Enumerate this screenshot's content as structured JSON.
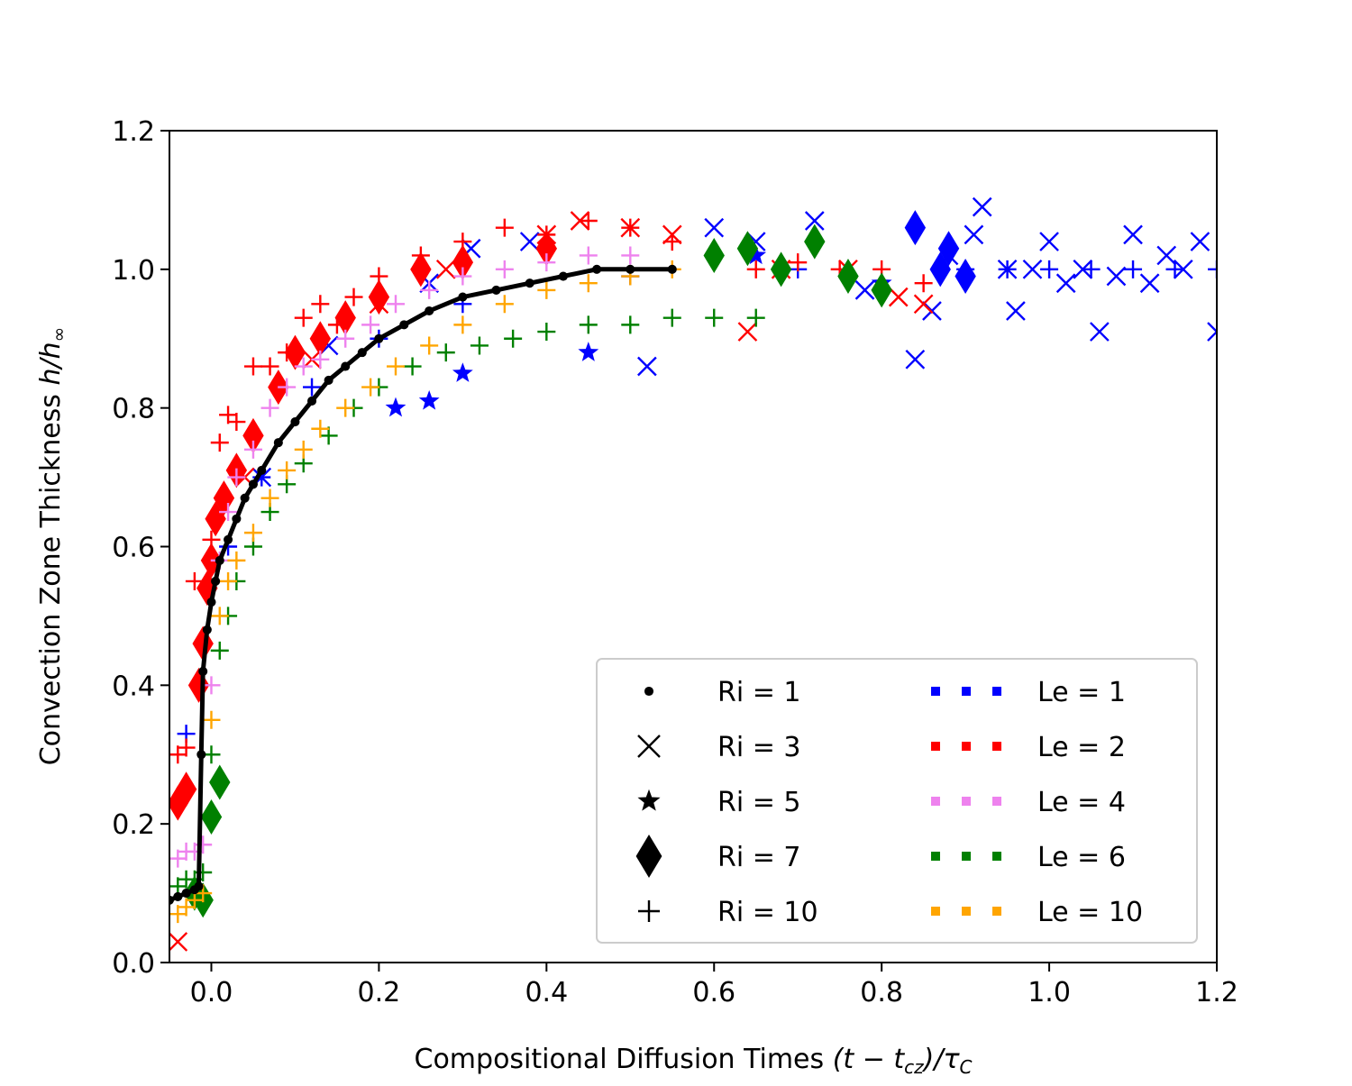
{
  "chart_data": {
    "type": "scatter",
    "title": "",
    "xlabel": "Compositional Diffusion Times  (t − t_cz)/τ_C",
    "xlabel_parts": {
      "prefix": "Compositional Diffusion Times  ",
      "expr": "(t − t",
      "sub": "cz",
      "close": ")/τ",
      "sub2": "C"
    },
    "ylabel": "Convection Zone Thickness  h/h∞",
    "ylabel_parts": {
      "prefix": "Convection Zone Thickness  ",
      "expr": "h/h",
      "sub": "∞"
    },
    "xlim": [
      -0.05,
      1.2
    ],
    "ylim": [
      0.0,
      1.2
    ],
    "xticks": [
      0.0,
      0.2,
      0.4,
      0.6,
      0.8,
      1.0,
      1.2
    ],
    "xtick_labels": [
      "0.0",
      "0.2",
      "0.4",
      "0.6",
      "0.8",
      "1.0",
      "1.2"
    ],
    "yticks": [
      0.0,
      0.2,
      0.4,
      0.6,
      0.8,
      1.0,
      1.2
    ],
    "ytick_labels": [
      "0.0",
      "0.2",
      "0.4",
      "0.6",
      "0.8",
      "1.0",
      "1.2"
    ],
    "grid": false,
    "legend_position": "lower right",
    "legend": {
      "markers": [
        {
          "label": "Ri = 1",
          "marker": "circle"
        },
        {
          "label": "Ri = 3",
          "marker": "x"
        },
        {
          "label": "Ri = 5",
          "marker": "star"
        },
        {
          "label": "Ri = 7",
          "marker": "diamond"
        },
        {
          "label": "Ri = 10",
          "marker": "plus"
        }
      ],
      "colors": [
        {
          "label": "Le = 1",
          "color": "#0000ff"
        },
        {
          "label": "Le = 2",
          "color": "#ff0000"
        },
        {
          "label": "Le = 4",
          "color": "#ee82ee"
        },
        {
          "label": "Le = 6",
          "color": "#008000"
        },
        {
          "label": "Le = 10",
          "color": "#ffa500"
        }
      ]
    },
    "series": [
      {
        "le": 1,
        "ri": 3,
        "color": "#0000ff",
        "marker": "x",
        "x": [
          0.06,
          0.14,
          0.26,
          0.31,
          0.38,
          0.52,
          0.6,
          0.65,
          0.72,
          0.78,
          0.84,
          0.86,
          0.88,
          0.91,
          0.92,
          0.95,
          0.96,
          0.98,
          1.0,
          1.02,
          1.04,
          1.06,
          1.08,
          1.1,
          1.12,
          1.14,
          1.16,
          1.18,
          1.2
        ],
        "y": [
          0.7,
          0.89,
          0.98,
          1.03,
          1.04,
          0.86,
          1.06,
          1.04,
          1.07,
          0.97,
          0.87,
          0.94,
          1.02,
          1.05,
          1.09,
          1.0,
          0.94,
          1.0,
          1.04,
          0.98,
          1.0,
          0.91,
          0.99,
          1.05,
          0.98,
          1.02,
          1.0,
          1.04,
          0.91
        ]
      },
      {
        "le": 1,
        "ri": 5,
        "color": "#0000ff",
        "marker": "star",
        "x": [
          0.22,
          0.26,
          0.3,
          0.45,
          0.65,
          0.8
        ],
        "y": [
          0.8,
          0.81,
          0.85,
          0.88,
          1.02,
          0.98
        ]
      },
      {
        "le": 1,
        "ri": 7,
        "color": "#0000ff",
        "marker": "diamond",
        "x": [
          0.84,
          0.87,
          0.88,
          0.9
        ],
        "y": [
          1.06,
          1.0,
          1.03,
          0.99
        ]
      },
      {
        "le": 1,
        "ri": 10,
        "color": "#0000ff",
        "marker": "plus",
        "x": [
          -0.03,
          0.02,
          0.06,
          0.12,
          0.2,
          0.3,
          0.5,
          0.7,
          0.9,
          0.95,
          1.0,
          1.05,
          1.1,
          1.15,
          1.2
        ],
        "y": [
          0.33,
          0.6,
          0.7,
          0.83,
          0.9,
          0.95,
          0.99,
          1.0,
          1.0,
          1.0,
          1.0,
          1.0,
          1.0,
          1.0,
          1.0
        ]
      },
      {
        "le": 2,
        "ri": 3,
        "color": "#ff0000",
        "marker": "x",
        "x": [
          -0.04,
          0.04,
          0.12,
          0.2,
          0.28,
          0.4,
          0.44,
          0.5,
          0.55,
          0.64,
          0.68,
          0.76,
          0.82,
          0.85
        ],
        "y": [
          0.03,
          0.7,
          0.87,
          0.95,
          1.0,
          1.05,
          1.07,
          1.06,
          1.05,
          0.91,
          1.0,
          1.0,
          0.96,
          0.95
        ]
      },
      {
        "le": 2,
        "ri": 7,
        "color": "#ff0000",
        "marker": "diamond",
        "x": [
          -0.04,
          -0.03,
          -0.015,
          -0.01,
          -0.005,
          0.0,
          0.005,
          0.015,
          0.03,
          0.05,
          0.08,
          0.1,
          0.13,
          0.16,
          0.2,
          0.25,
          0.3,
          0.4
        ],
        "y": [
          0.23,
          0.25,
          0.4,
          0.46,
          0.54,
          0.58,
          0.64,
          0.67,
          0.71,
          0.76,
          0.83,
          0.88,
          0.9,
          0.93,
          0.96,
          1.0,
          1.01,
          1.03
        ]
      },
      {
        "le": 2,
        "ri": 10,
        "color": "#ff0000",
        "marker": "plus",
        "x": [
          -0.04,
          -0.03,
          -0.02,
          0.0,
          0.01,
          0.02,
          0.03,
          0.05,
          0.07,
          0.09,
          0.11,
          0.13,
          0.15,
          0.17,
          0.2,
          0.25,
          0.3,
          0.35,
          0.4,
          0.45,
          0.5,
          0.55,
          0.6,
          0.65,
          0.7,
          0.75,
          0.8,
          0.85
        ],
        "y": [
          0.3,
          0.31,
          0.55,
          0.61,
          0.75,
          0.79,
          0.78,
          0.86,
          0.86,
          0.88,
          0.93,
          0.95,
          0.92,
          0.96,
          0.99,
          1.02,
          1.04,
          1.06,
          1.05,
          1.07,
          1.06,
          1.04,
          1.02,
          1.0,
          1.01,
          1.0,
          1.0,
          0.98
        ]
      },
      {
        "le": 4,
        "ri": 10,
        "color": "#ee82ee",
        "marker": "plus",
        "x": [
          -0.04,
          -0.03,
          -0.02,
          -0.01,
          0.0,
          0.01,
          0.02,
          0.03,
          0.05,
          0.07,
          0.09,
          0.11,
          0.13,
          0.16,
          0.19,
          0.22,
          0.26,
          0.3,
          0.35,
          0.4,
          0.45,
          0.5
        ],
        "y": [
          0.15,
          0.16,
          0.16,
          0.17,
          0.4,
          0.58,
          0.65,
          0.7,
          0.74,
          0.8,
          0.83,
          0.86,
          0.87,
          0.9,
          0.92,
          0.95,
          0.97,
          0.99,
          1.0,
          1.01,
          1.02,
          1.02
        ]
      },
      {
        "le": 6,
        "ri": 10,
        "color": "#008000",
        "marker": "plus",
        "x": [
          -0.04,
          -0.03,
          -0.02,
          -0.01,
          0.0,
          0.01,
          0.02,
          0.03,
          0.05,
          0.07,
          0.09,
          0.11,
          0.14,
          0.17,
          0.2,
          0.24,
          0.28,
          0.32,
          0.36,
          0.4,
          0.45,
          0.5,
          0.55,
          0.6,
          0.65
        ],
        "y": [
          0.11,
          0.12,
          0.12,
          0.13,
          0.3,
          0.45,
          0.5,
          0.55,
          0.6,
          0.65,
          0.69,
          0.72,
          0.76,
          0.8,
          0.83,
          0.86,
          0.88,
          0.89,
          0.9,
          0.91,
          0.92,
          0.92,
          0.93,
          0.93,
          0.93
        ]
      },
      {
        "le": 6,
        "ri": 7,
        "color": "#008000",
        "marker": "diamond",
        "x": [
          -0.02,
          -0.01,
          0.0,
          0.01,
          0.6,
          0.64,
          0.68,
          0.72,
          0.76,
          0.8
        ],
        "y": [
          0.1,
          0.09,
          0.21,
          0.26,
          1.02,
          1.03,
          1.0,
          1.04,
          0.99,
          0.97
        ]
      },
      {
        "le": 10,
        "ri": 10,
        "color": "#ffa500",
        "marker": "plus",
        "x": [
          -0.04,
          -0.03,
          -0.02,
          -0.01,
          0.0,
          0.01,
          0.02,
          0.03,
          0.05,
          0.07,
          0.09,
          0.11,
          0.13,
          0.16,
          0.19,
          0.22,
          0.26,
          0.3,
          0.35,
          0.4,
          0.45,
          0.5,
          0.55
        ],
        "y": [
          0.07,
          0.08,
          0.09,
          0.1,
          0.35,
          0.5,
          0.55,
          0.58,
          0.62,
          0.67,
          0.71,
          0.74,
          0.77,
          0.8,
          0.83,
          0.86,
          0.89,
          0.92,
          0.95,
          0.97,
          0.98,
          0.99,
          1.0
        ]
      },
      {
        "le": 1,
        "ri": 1,
        "color": "#000000",
        "marker": "circle",
        "line": true,
        "x": [
          -0.05,
          -0.04,
          -0.03,
          -0.02,
          -0.015,
          -0.012,
          -0.01,
          -0.005,
          0.0,
          0.005,
          0.01,
          0.02,
          0.03,
          0.04,
          0.05,
          0.06,
          0.08,
          0.1,
          0.12,
          0.14,
          0.16,
          0.18,
          0.2,
          0.23,
          0.26,
          0.3,
          0.34,
          0.38,
          0.42,
          0.46,
          0.5,
          0.55
        ],
        "y": [
          0.09,
          0.095,
          0.1,
          0.105,
          0.11,
          0.3,
          0.42,
          0.48,
          0.52,
          0.55,
          0.58,
          0.61,
          0.64,
          0.67,
          0.69,
          0.71,
          0.75,
          0.78,
          0.81,
          0.84,
          0.86,
          0.88,
          0.9,
          0.92,
          0.94,
          0.96,
          0.97,
          0.98,
          0.99,
          1.0,
          1.0,
          1.0
        ]
      }
    ]
  }
}
